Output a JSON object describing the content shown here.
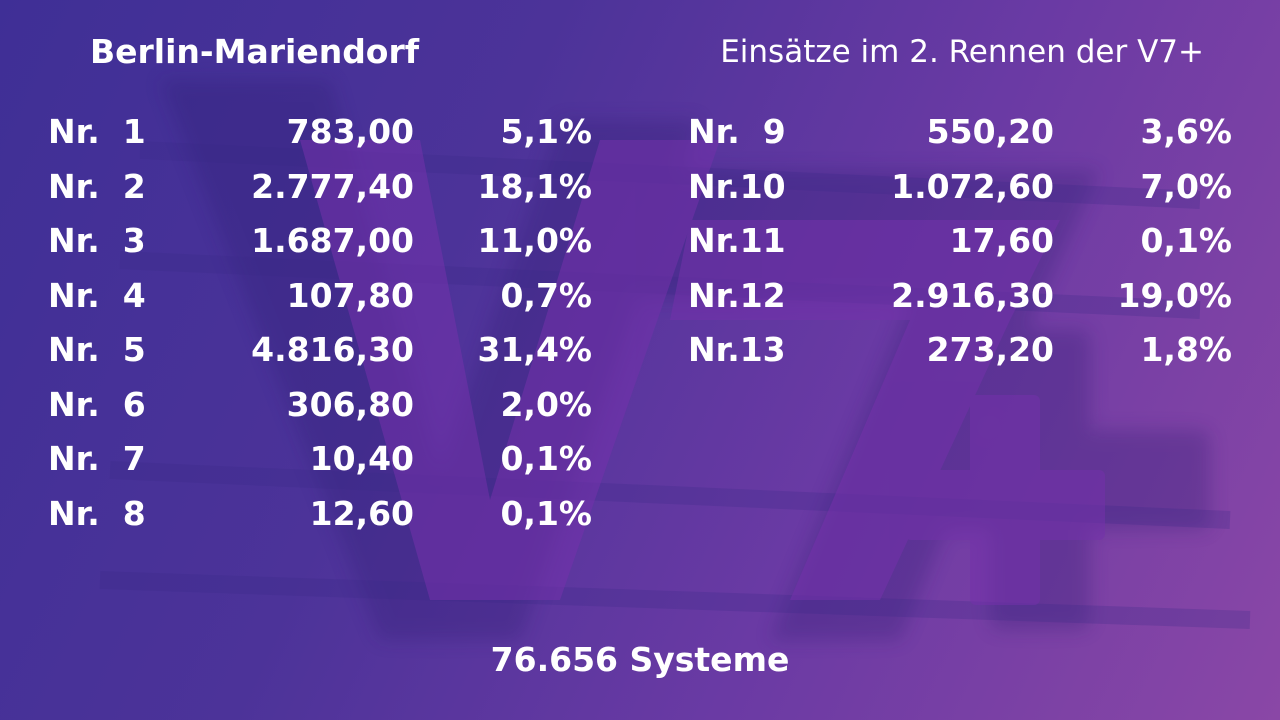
{
  "header": {
    "venue": "Berlin-Mariendorf",
    "subtitle": "Einsätze im 2. Rennen der V7+"
  },
  "watermark": {
    "icon": "v7-plus-logo",
    "color": "#7a3bb0"
  },
  "left_column": [
    {
      "nr": "Nr.  1",
      "amount": "783,00",
      "percent": "5,1%"
    },
    {
      "nr": "Nr.  2",
      "amount": "2.777,40",
      "percent": "18,1%"
    },
    {
      "nr": "Nr.  3",
      "amount": "1.687,00",
      "percent": "11,0%"
    },
    {
      "nr": "Nr.  4",
      "amount": "107,80",
      "percent": "0,7%"
    },
    {
      "nr": "Nr.  5",
      "amount": "4.816,30",
      "percent": "31,4%"
    },
    {
      "nr": "Nr.  6",
      "amount": "306,80",
      "percent": "2,0%"
    },
    {
      "nr": "Nr.  7",
      "amount": "10,40",
      "percent": "0,1%"
    },
    {
      "nr": "Nr.  8",
      "amount": "12,60",
      "percent": "0,1%"
    }
  ],
  "right_column": [
    {
      "nr": "Nr.  9",
      "amount": "550,20",
      "percent": "3,6%"
    },
    {
      "nr": "Nr.10",
      "amount": "1.072,60",
      "percent": "7,0%"
    },
    {
      "nr": "Nr.11",
      "amount": "17,60",
      "percent": "0,1%"
    },
    {
      "nr": "Nr.12",
      "amount": "2.916,30",
      "percent": "19,0%"
    },
    {
      "nr": "Nr.13",
      "amount": "273,20",
      "percent": "1,8%"
    }
  ],
  "footer": {
    "systems": "76.656 Systeme"
  }
}
